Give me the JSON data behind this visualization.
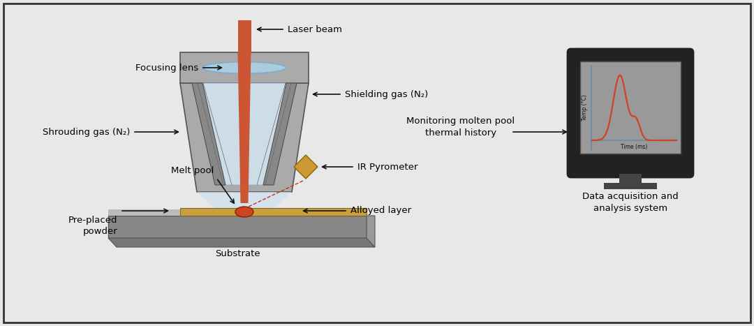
{
  "bg_color": "#e8e8e8",
  "fig_width": 10.8,
  "fig_height": 4.67,
  "labels": {
    "laser_beam": "Laser beam",
    "focusing_lens": "Focusing lens",
    "shielding_gas": "Shielding gas (N₂)",
    "shrouding_gas": "Shrouding gas (N₂)",
    "melt_pool": "Melt pool",
    "pre_placed": "Pre-placed\npowder",
    "substrate": "Substrate",
    "alloyed_layer": "Alloyed layer",
    "ir_pyrometer": "IR Pyrometer",
    "monitoring": "Monitoring molten pool\nthermal history",
    "data_acq": "Data acquisition and\nanalysis system",
    "temp_axis": "Temp (°C)",
    "time_axis": "Time (ms)"
  },
  "colors": {
    "border_color": "#333333",
    "laser_beam_color": "#cc5533",
    "lens_color": "#aaccdd",
    "nozzle_body": "#aaaaaa",
    "nozzle_dark": "#888888",
    "light_cone": "#cce0ee",
    "substrate_top": "#888888",
    "substrate_bot": "#777777",
    "alloyed_layer": "#c8a040",
    "melt_pool": "#cc4422",
    "pyrometer_body": "#cc9933",
    "screen_outer": "#222222",
    "screen_inner": "#999999",
    "plot_line": "#cc4422",
    "axis_line": "#6688aa",
    "monitor_stand": "#333333",
    "arrow_color": "#111111"
  }
}
